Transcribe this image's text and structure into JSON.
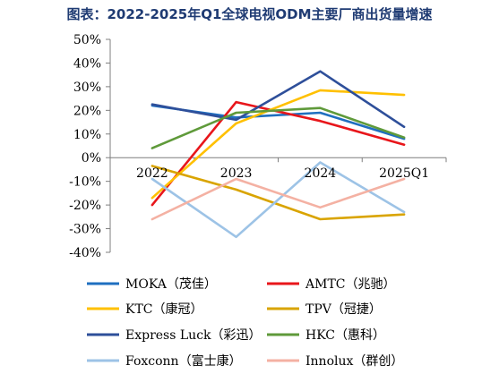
{
  "title": "图表：2022-2025年Q1全球电视ODM主要厂商出货量增速",
  "chart_data": {
    "type": "line",
    "categories": [
      "2022",
      "2023",
      "2024",
      "2025Q1"
    ],
    "ylim": [
      -40,
      50
    ],
    "yticks": [
      "50%",
      "40%",
      "30%",
      "20%",
      "10%",
      "0%",
      "-10%",
      "-20%",
      "-30%",
      "-40%"
    ],
    "xlabel": "",
    "ylabel": "",
    "grid": false,
    "legend_position": "bottom",
    "series": [
      {
        "name": "MOKA（茂佳）",
        "color": "#1f6fc0",
        "values": [
          22,
          17,
          19,
          8
        ]
      },
      {
        "name": "AMTC（兆驰）",
        "color": "#e8161b",
        "values": [
          -20,
          23.5,
          15.5,
          5.5
        ]
      },
      {
        "name": "KTC（康冠）",
        "color": "#ffc000",
        "values": [
          -17,
          14.5,
          28.5,
          26.5
        ]
      },
      {
        "name": "TPV（冠捷）",
        "color": "#d9a400",
        "values": [
          -3.5,
          -13.5,
          -26,
          -24
        ]
      },
      {
        "name": "Express Luck（彩迅）",
        "color": "#2e4f9a",
        "values": [
          22.5,
          16,
          36.5,
          13
        ]
      },
      {
        "name": "HKC（惠科）",
        "color": "#5f9a3a",
        "values": [
          4,
          19,
          21,
          8.5
        ]
      },
      {
        "name": "Foxconn（富士康）",
        "color": "#9dc3e6",
        "values": [
          -9,
          -33.5,
          -2,
          -23
        ]
      },
      {
        "name": "Innolux（群创）",
        "color": "#f4b1a3",
        "values": [
          -26,
          -9,
          -21,
          -9
        ]
      }
    ]
  }
}
